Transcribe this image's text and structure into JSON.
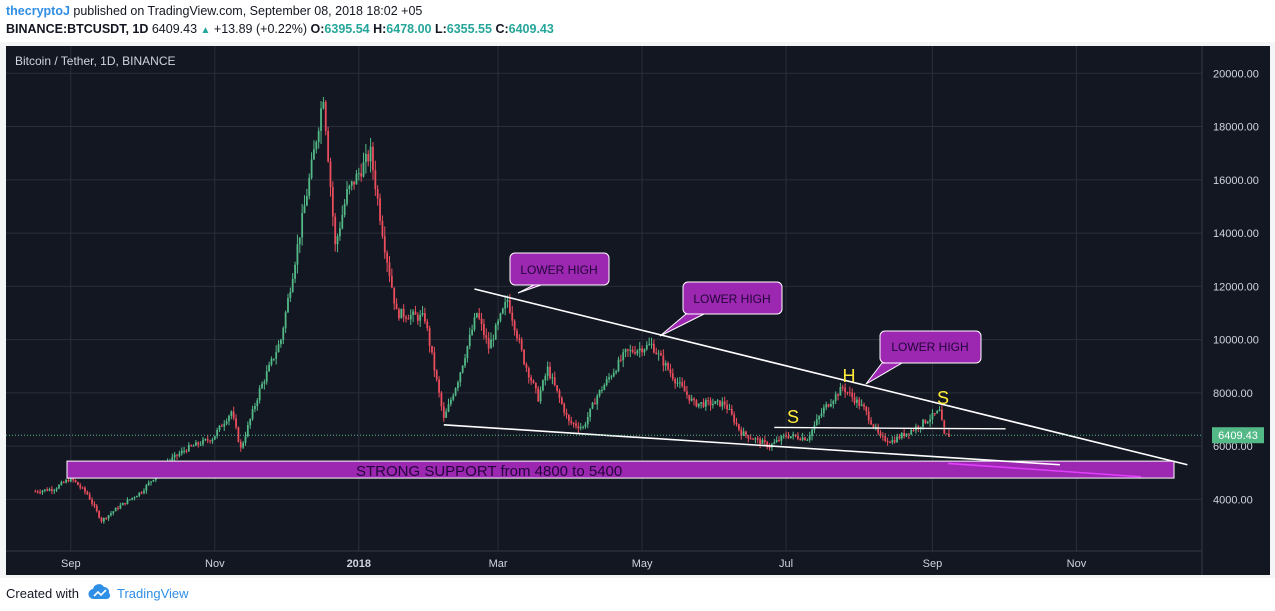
{
  "header": {
    "author": "thecryptoJ",
    "published": "published on TradingView.com, September 08, 2018 18:02 +05",
    "symbol": "BINANCE:BTCUSDT, 1D",
    "last": "6409.43",
    "change_arrow": "▲",
    "change": "+13.89 (+0.22%)",
    "o_label": "O:",
    "o_value": "6395.54",
    "h_label": "H:",
    "h_value": "6478.00",
    "l_label": "L:",
    "l_value": "6355.55",
    "c_label": "C:",
    "c_value": "6409.43"
  },
  "footer": {
    "created_with": "Created with",
    "brand": "TradingView"
  },
  "colors": {
    "up": "#53b987",
    "down": "#eb4d5c",
    "background": "#131722",
    "grid": "#2a2e39",
    "callout": "#9c27b0",
    "support": "#9c27b0",
    "hs_label": "#ffeb3b"
  },
  "chart_data": {
    "type": "candlestick",
    "title": "Bitcoin / Tether, 1D, BINANCE",
    "ylim": [
      2000,
      21000
    ],
    "y_ticks": [
      "4000.00",
      "6000.00",
      "8000.00",
      "10000.00",
      "12000.00",
      "14000.00",
      "16000.00",
      "18000.00",
      "20000.00"
    ],
    "x_ticks": [
      "Sep",
      "Nov",
      "2018",
      "Mar",
      "May",
      "Jul",
      "Sep",
      "Nov"
    ],
    "last_price_label": "6409.43",
    "grid": true,
    "price_path": [
      [
        "2017-08-17",
        4300
      ],
      [
        "2017-08-25",
        4400
      ],
      [
        "2017-09-01",
        4800
      ],
      [
        "2017-09-08",
        4200
      ],
      [
        "2017-09-14",
        3200
      ],
      [
        "2017-09-21",
        3700
      ],
      [
        "2017-10-01",
        4300
      ],
      [
        "2017-10-12",
        5400
      ],
      [
        "2017-10-20",
        5900
      ],
      [
        "2017-10-31",
        6300
      ],
      [
        "2017-11-08",
        7300
      ],
      [
        "2017-11-12",
        5900
      ],
      [
        "2017-11-20",
        8100
      ],
      [
        "2017-11-29",
        10000
      ],
      [
        "2017-12-07",
        14000
      ],
      [
        "2017-12-12",
        16500
      ],
      [
        "2017-12-17",
        19200
      ],
      [
        "2017-12-22",
        13500
      ],
      [
        "2017-12-27",
        15500
      ],
      [
        "2018-01-06",
        17000
      ],
      [
        "2018-01-12",
        13500
      ],
      [
        "2018-01-17",
        11000
      ],
      [
        "2018-01-29",
        10800
      ],
      [
        "2018-02-06",
        7000
      ],
      [
        "2018-02-12",
        8500
      ],
      [
        "2018-02-20",
        11000
      ],
      [
        "2018-02-25",
        9700
      ],
      [
        "2018-03-05",
        11500
      ],
      [
        "2018-03-12",
        9200
      ],
      [
        "2018-03-18",
        7800
      ],
      [
        "2018-03-22",
        8900
      ],
      [
        "2018-03-31",
        6900
      ],
      [
        "2018-04-06",
        6700
      ],
      [
        "2018-04-12",
        7900
      ],
      [
        "2018-04-24",
        9500
      ],
      [
        "2018-05-05",
        9800
      ],
      [
        "2018-05-15",
        8500
      ],
      [
        "2018-05-23",
        7600
      ],
      [
        "2018-06-05",
        7600
      ],
      [
        "2018-06-12",
        6500
      ],
      [
        "2018-06-24",
        6000
      ],
      [
        "2018-07-01",
        6400
      ],
      [
        "2018-07-10",
        6300
      ],
      [
        "2018-07-17",
        7400
      ],
      [
        "2018-07-25",
        8200
      ],
      [
        "2018-08-03",
        7400
      ],
      [
        "2018-08-10",
        6300
      ],
      [
        "2018-08-15",
        6200
      ],
      [
        "2018-08-25",
        6700
      ],
      [
        "2018-09-04",
        7300
      ],
      [
        "2018-09-06",
        6400
      ],
      [
        "2018-09-08",
        6409
      ]
    ],
    "annotations": {
      "lower_high_1": "LOWER HIGH",
      "lower_high_2": "LOWER HIGH",
      "lower_high_3": "LOWER HIGH",
      "shoulder_left": "S",
      "head": "H",
      "shoulder_right": "S",
      "support_zone": "STRONG SUPPORT from 4800 to  5400",
      "support_range": [
        4800,
        5400
      ]
    }
  }
}
